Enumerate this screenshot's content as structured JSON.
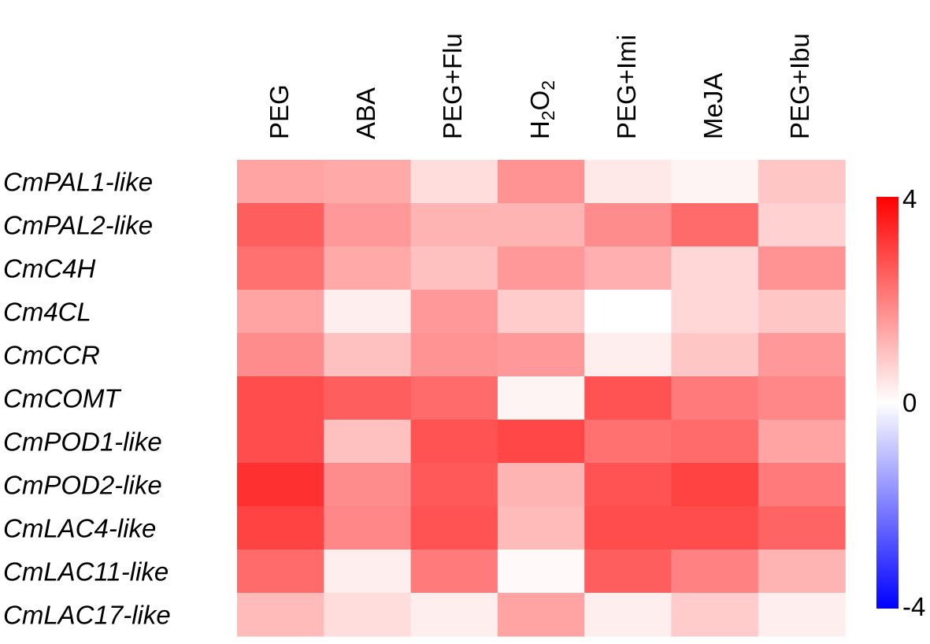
{
  "chart_data": {
    "type": "heatmap",
    "columns": [
      {
        "text": "PEG"
      },
      {
        "text": "ABA"
      },
      {
        "text": "PEG+Flu"
      },
      {
        "text": "H",
        "sub_1": "2",
        "mid": "O",
        "sub_2": "2"
      },
      {
        "text": "PEG+Imi"
      },
      {
        "text": "MeJA"
      },
      {
        "text": "PEG+Ibu"
      }
    ],
    "rows": [
      "CmPAL1-like",
      "CmPAL2-like",
      "CmC4H",
      "Cm4CL",
      "CmCCR",
      "CmCOMT",
      "CmPOD1-like",
      "CmPOD2-like",
      "CmLAC4-like",
      "CmLAC11-like",
      "CmLAC17-like"
    ],
    "values": [
      [
        1.6,
        1.5,
        0.6,
        1.9,
        0.4,
        0.2,
        1.0
      ],
      [
        2.8,
        1.8,
        1.3,
        1.3,
        2.0,
        2.6,
        0.8
      ],
      [
        2.5,
        1.5,
        1.1,
        1.8,
        1.4,
        0.7,
        1.9
      ],
      [
        1.6,
        0.3,
        1.8,
        0.9,
        0.0,
        0.7,
        1.0
      ],
      [
        2.0,
        1.1,
        1.9,
        1.8,
        0.3,
        1.0,
        1.8
      ],
      [
        3.1,
        2.8,
        2.6,
        0.2,
        3.0,
        2.3,
        2.1
      ],
      [
        3.1,
        1.1,
        3.0,
        3.2,
        2.5,
        2.6,
        1.6
      ],
      [
        3.6,
        2.0,
        2.9,
        1.3,
        3.0,
        3.3,
        2.3
      ],
      [
        3.3,
        2.1,
        3.0,
        1.2,
        3.1,
        3.1,
        2.7
      ],
      [
        2.6,
        0.3,
        2.3,
        0.1,
        2.8,
        2.2,
        1.3
      ],
      [
        1.2,
        0.6,
        0.3,
        1.6,
        0.3,
        0.9,
        0.3
      ]
    ],
    "colorbar": {
      "min": -4,
      "mid": 0,
      "max": 4,
      "ticks": [
        "4",
        "0",
        "-4"
      ],
      "colors": {
        "low": "#0000ff",
        "mid": "#ffffff",
        "high": "#ff0000"
      }
    }
  }
}
